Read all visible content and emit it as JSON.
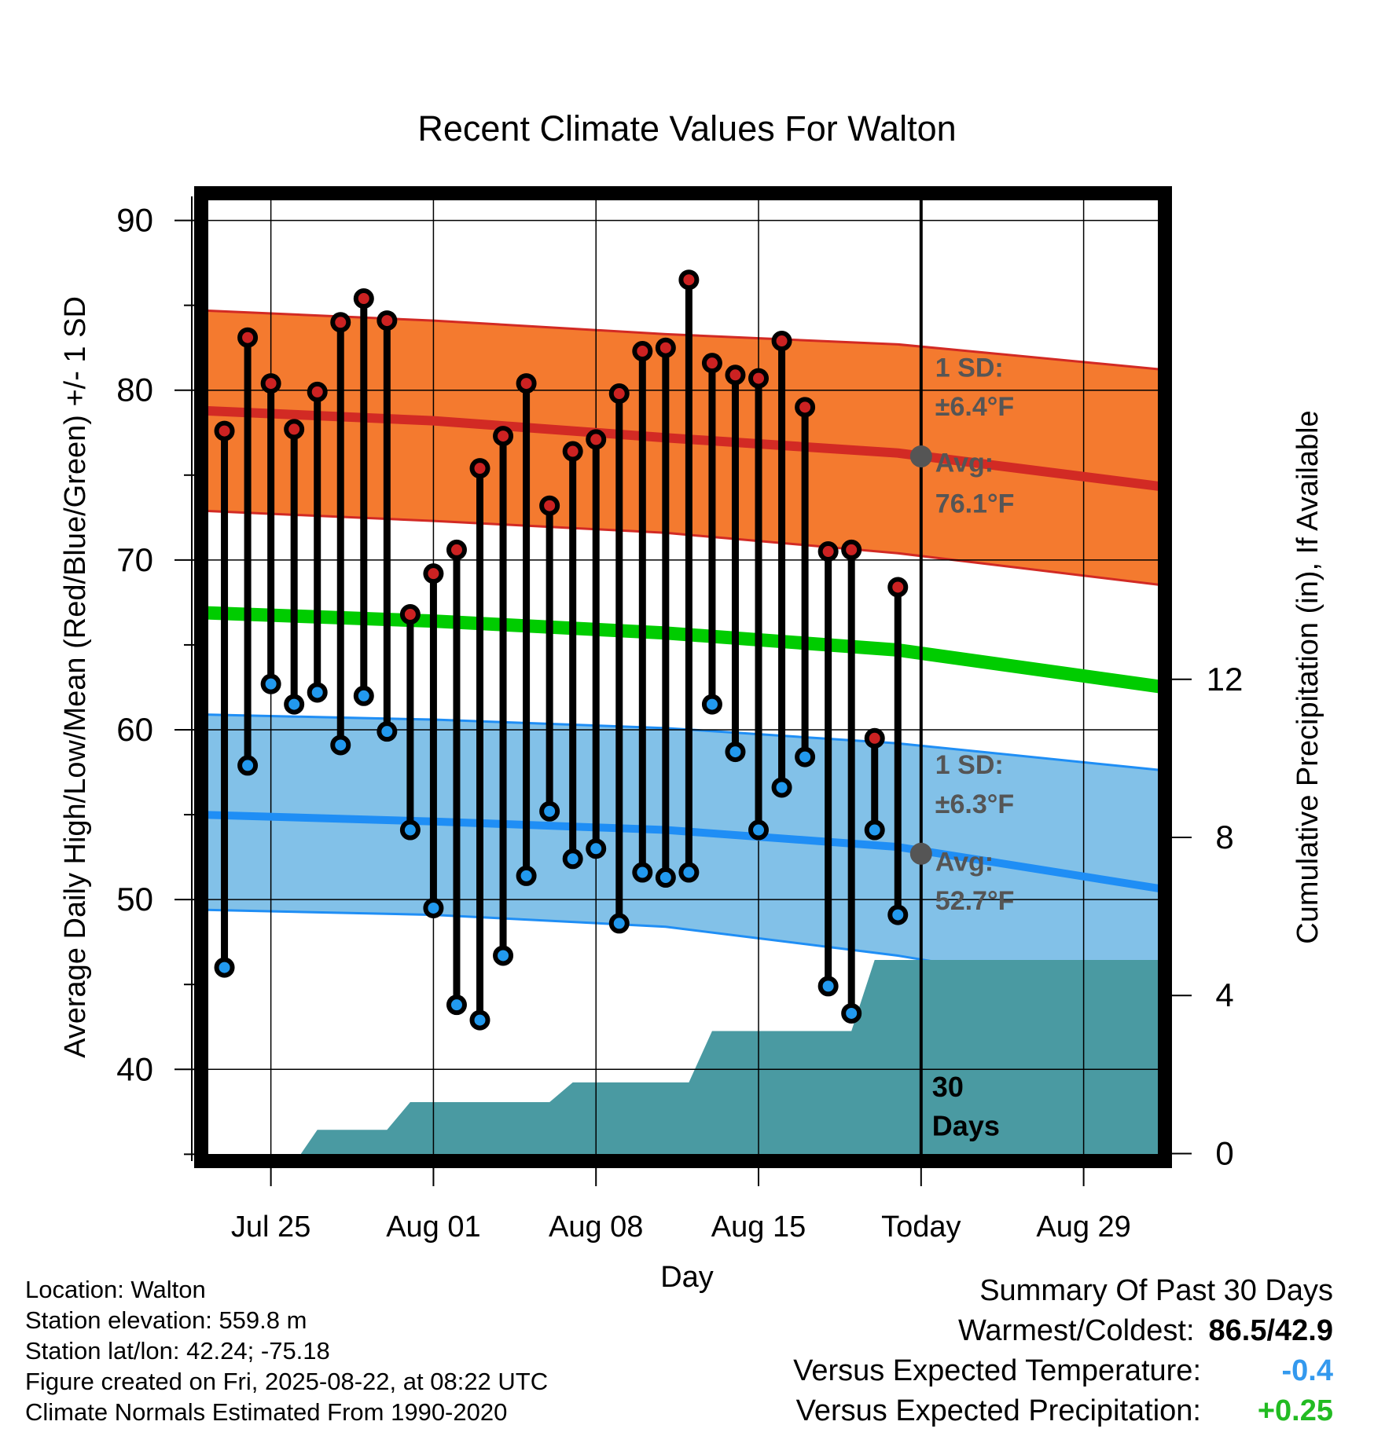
{
  "chart_data": {
    "type": "line",
    "title": "Recent Climate Values For Walton",
    "xlabel": "Day",
    "ylabel_left": "Average Daily High/Low/Mean (Red/Blue/Green) +/- 1 SD",
    "ylabel_right": "Cumulative Precipitation (in), If Available",
    "x_tick_labels": [
      {
        "day": 3,
        "label": "Jul 25"
      },
      {
        "day": 10,
        "label": "Aug 01"
      },
      {
        "day": 17,
        "label": "Aug 08"
      },
      {
        "day": 24,
        "label": "Aug 15"
      },
      {
        "day": 31,
        "label": "Today"
      },
      {
        "day": 38,
        "label": "Aug 29"
      }
    ],
    "x_range_days": [
      0,
      41.5
    ],
    "y_left": {
      "ticks": [
        40,
        50,
        60,
        70,
        80,
        90
      ],
      "range": [
        34.6,
        91.6
      ]
    },
    "y_right": {
      "ticks": [
        0,
        4,
        8,
        12
      ],
      "range": [
        -0.19,
        24.3
      ]
    },
    "daily_observations": {
      "day": [
        1,
        2,
        3,
        4,
        5,
        6,
        7,
        8,
        9,
        10,
        11,
        12,
        13,
        14,
        15,
        16,
        17,
        18,
        19,
        20,
        21,
        22,
        23,
        24,
        25,
        26,
        27,
        28,
        29,
        30
      ],
      "high": [
        77.6,
        83.1,
        80.4,
        77.7,
        79.9,
        84.0,
        85.4,
        84.1,
        66.8,
        69.2,
        70.6,
        75.4,
        77.3,
        80.4,
        73.2,
        76.4,
        77.1,
        79.8,
        82.3,
        82.5,
        86.5,
        81.6,
        80.9,
        80.7,
        82.9,
        79.0,
        70.5,
        70.6,
        59.5,
        68.4
      ],
      "low": [
        46.0,
        57.9,
        62.7,
        61.5,
        62.2,
        59.1,
        62.0,
        59.9,
        54.1,
        49.5,
        43.8,
        42.9,
        46.7,
        51.4,
        55.2,
        52.4,
        53.0,
        48.6,
        51.6,
        51.3,
        51.6,
        61.5,
        58.7,
        54.1,
        56.6,
        58.4,
        44.9,
        43.3,
        54.1,
        49.1
      ]
    },
    "normals": {
      "days": [
        0,
        10,
        20,
        30,
        41.5
      ],
      "high_avg": [
        78.8,
        78.2,
        77.2,
        76.3,
        74.3
      ],
      "high_plus_sd": [
        84.7,
        84.1,
        83.3,
        82.7,
        81.2
      ],
      "high_minus_sd": [
        72.9,
        72.3,
        71.6,
        70.4,
        68.5
      ],
      "mean": [
        66.9,
        66.4,
        65.7,
        64.7,
        62.5
      ],
      "low_avg": [
        55.0,
        54.6,
        54.1,
        53.1,
        50.6
      ],
      "low_plus_sd": [
        60.9,
        60.6,
        60.1,
        59.2,
        57.6
      ],
      "low_minus_sd": [
        49.4,
        49.1,
        48.4,
        46.7,
        44.1
      ]
    },
    "precip_cumulative_steps": [
      {
        "day": 4.3,
        "value": 0.0
      },
      {
        "day": 5.0,
        "value": 0.6
      },
      {
        "day": 8.0,
        "value": 0.6
      },
      {
        "day": 9.0,
        "value": 1.3
      },
      {
        "day": 15.0,
        "value": 1.3
      },
      {
        "day": 16.0,
        "value": 1.8
      },
      {
        "day": 21.0,
        "value": 1.8
      },
      {
        "day": 22.0,
        "value": 3.1
      },
      {
        "day": 28.0,
        "value": 3.1
      },
      {
        "day": 29.0,
        "value": 4.9
      },
      {
        "day": 41.5,
        "value": 4.9
      }
    ],
    "today_day": 31,
    "today_high_avg": 76.1,
    "today_low_avg": 52.7,
    "annotations": {
      "high_sd_line1": "1 SD:",
      "high_sd_line2": "±6.4°F",
      "high_avg_line1": "Avg:",
      "high_avg_line2": "76.1°F",
      "low_sd_line1": "1 SD:",
      "low_sd_line2": "±6.3°F",
      "low_avg_line1": "Avg:",
      "low_avg_line2": "52.7°F",
      "days_line1": "30",
      "days_line2": "Days"
    },
    "grid": true
  },
  "colors": {
    "high_band": "#f47a2f",
    "high_avg_line": "#d22a24",
    "low_band": "#82c1e8",
    "low_avg_line": "#1f8ef5",
    "mean_line": "#00cc00",
    "precip_fill": "#4a9aa2",
    "high_point": "#cc2222",
    "low_point": "#2299ee",
    "annotation_text": "#555555",
    "temp_delta": "#3399ee",
    "precip_delta": "#22bb22"
  },
  "footer": {
    "location": "Location: Walton",
    "elevation": "Station elevation: 559.8 m",
    "latlon": "Station lat/lon: 42.24; -75.18",
    "created": "Figure created on Fri, 2025-08-22, at 08:22 UTC",
    "normals": "Climate Normals Estimated From 1990-2020"
  },
  "summary": {
    "title": "Summary Of Past 30 Days",
    "warmest_label": "Warmest/Coldest:",
    "warmest_value": "86.5/42.9",
    "temp_label": "Versus Expected Temperature:",
    "temp_value": "-0.4",
    "precip_label": "Versus Expected Precipitation:",
    "precip_value": "+0.25"
  }
}
